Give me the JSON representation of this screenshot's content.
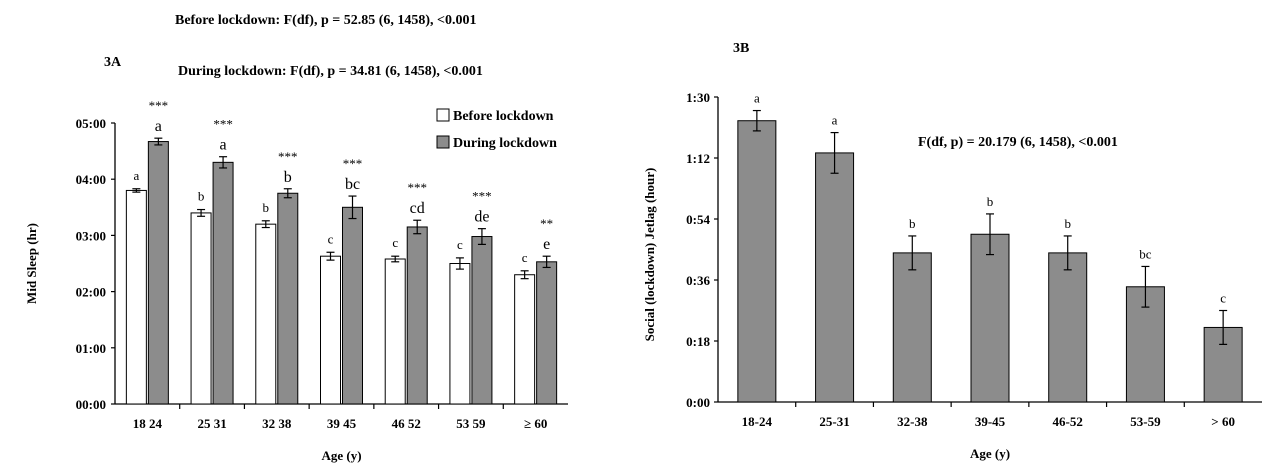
{
  "figure_3a": {
    "panel_label": "3A",
    "stat_before": "Before lockdown:  F(df), p = 52.85 (6, 1458), <0.001",
    "stat_during": "During lockdown:  F(df), p = 34.81 (6, 1458), <0.001"
  },
  "figure_3b": {
    "panel_label": "3B",
    "stat": "F(df, p) = 20.179 (6, 1458), <0.001"
  },
  "colors": {
    "before": "#ffffff",
    "during": "#8c8c8c",
    "bar_3b": "#8c8c8c",
    "axis": "#000000"
  },
  "chart_data": [
    {
      "type": "bar",
      "title": "",
      "xlabel": "Age (y)",
      "ylabel": "Mid Sleep  (hr)",
      "categories": [
        "18 24",
        "25 31",
        "32 38",
        "39 45",
        "46 52",
        "53 59",
        "≥ 60"
      ],
      "y_tick_labels": [
        "00:00",
        "01:00",
        "02:00",
        "03:00",
        "04:00",
        "05:00"
      ],
      "ylim": [
        0,
        5
      ],
      "legend": "top-right",
      "series": [
        {
          "name": "Before lockdown",
          "values": [
            3.8,
            3.4,
            3.2,
            2.63,
            2.58,
            2.5,
            2.3
          ],
          "errors": [
            0.03,
            0.06,
            0.06,
            0.07,
            0.05,
            0.1,
            0.07
          ],
          "letters": [
            "a",
            "b",
            "b",
            "c",
            "c",
            "c",
            "c"
          ]
        },
        {
          "name": "During lockdown",
          "values": [
            4.67,
            4.3,
            3.75,
            3.5,
            3.15,
            2.98,
            2.53
          ],
          "errors": [
            0.06,
            0.1,
            0.08,
            0.2,
            0.12,
            0.14,
            0.1
          ],
          "letters": [
            "a",
            "a",
            "b",
            "bc",
            "cd",
            "de",
            "e"
          ]
        }
      ],
      "significance": [
        "***",
        "***",
        "***",
        "***",
        "***",
        "***",
        "**"
      ]
    },
    {
      "type": "bar",
      "title": "",
      "xlabel": "Age (y)",
      "ylabel": "Social (lockdown) Jetlag (hour)",
      "categories": [
        "18-24",
        "25-31",
        "32-38",
        "39-45",
        "46-52",
        "53-59",
        "> 60"
      ],
      "y_tick_labels": [
        "0:00",
        "0:18",
        "0:36",
        "0:54",
        "1:12",
        "1:30"
      ],
      "ylim": [
        0,
        90
      ],
      "values": [
        83,
        73.5,
        44,
        49.5,
        44,
        34,
        22
      ],
      "errors": [
        3,
        6,
        5,
        6,
        5,
        6,
        5
      ],
      "letters": [
        "a",
        "a",
        "b",
        "b",
        "b",
        "bc",
        "c"
      ]
    }
  ]
}
